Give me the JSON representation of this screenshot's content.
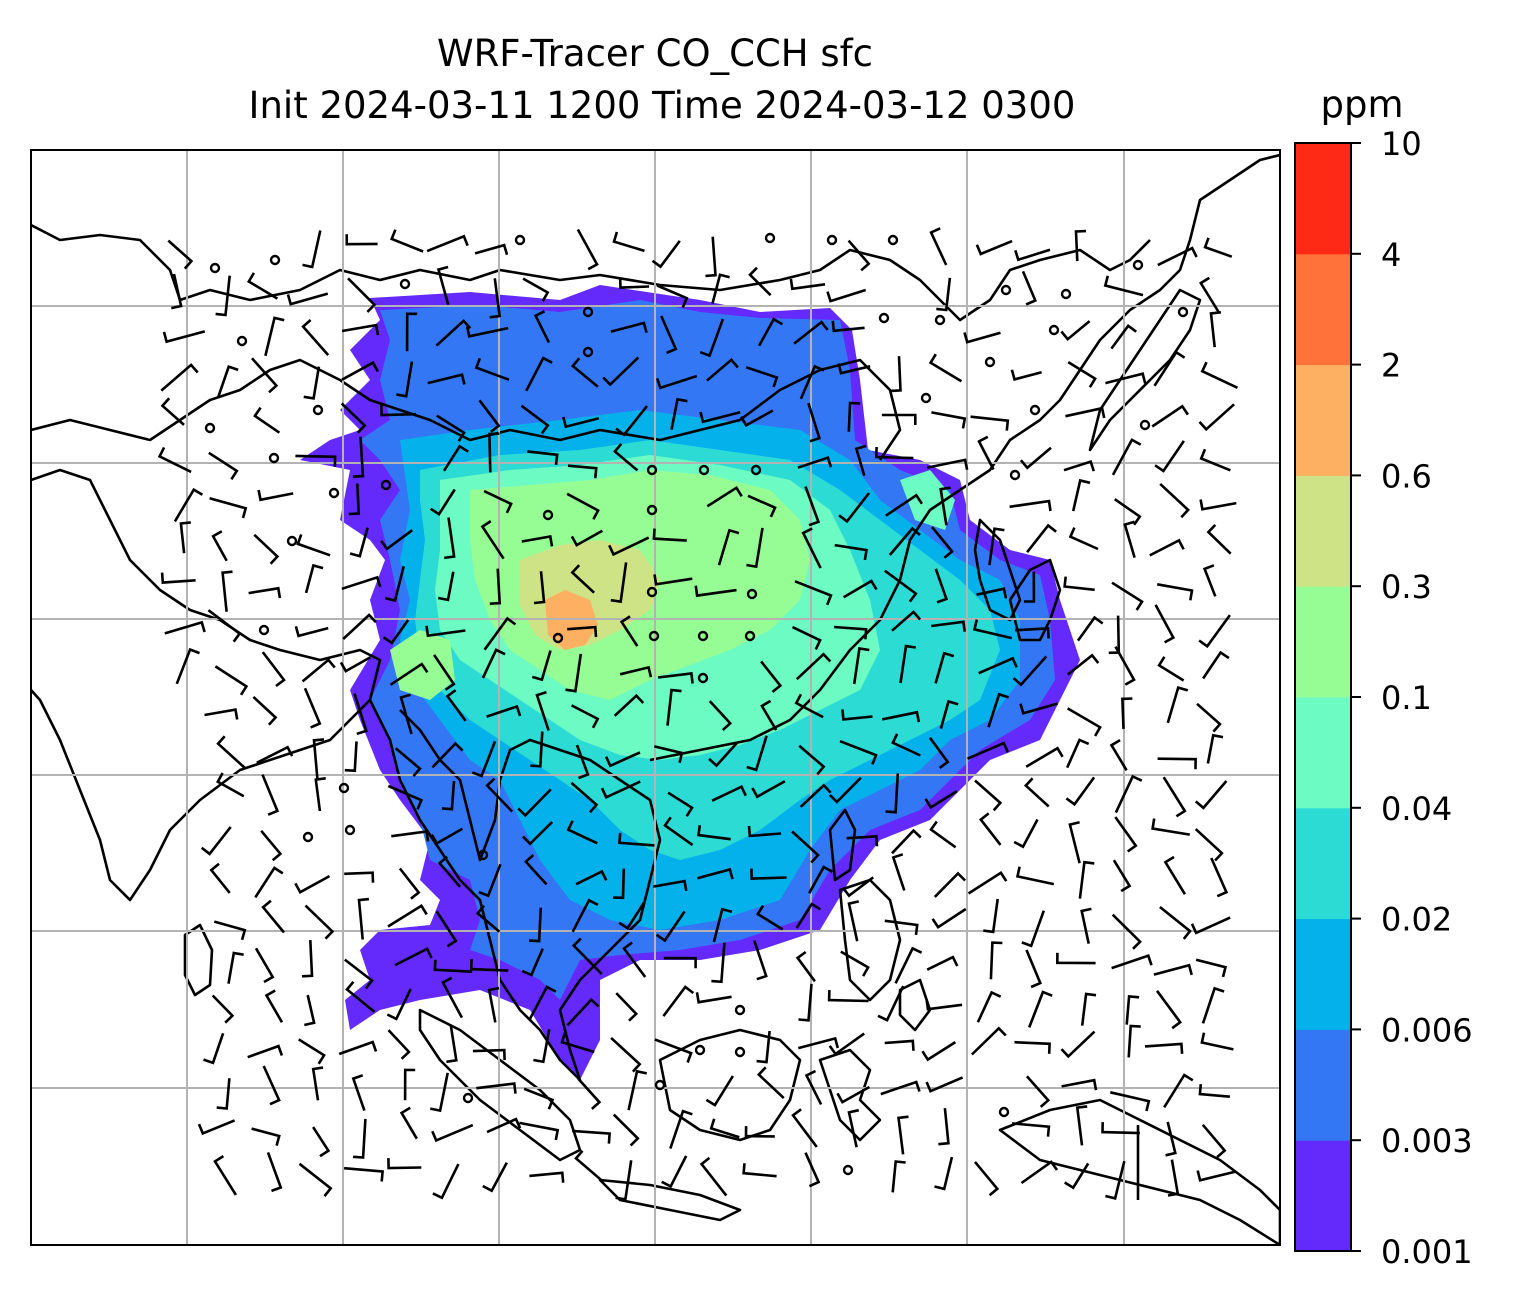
{
  "title": {
    "line1": "WRF-Tracer CO_CCH sfc",
    "line2": "Init 2024-03-11 1200 Time 2024-03-12 0300"
  },
  "colorbar": {
    "unit": "ppm",
    "levels": [
      "0.001",
      "0.003",
      "0.006",
      "0.02",
      "0.04",
      "0.1",
      "0.3",
      "0.6",
      "2",
      "4",
      "10"
    ],
    "colors": [
      "#6429fb",
      "#3477f5",
      "#05b1ea",
      "#2cdcd4",
      "#6cfbc2",
      "#96fd95",
      "#cde385",
      "#feb062",
      "#ff733a",
      "#ff2a15"
    ]
  },
  "map": {
    "gridlines": "on",
    "coastline_color": "#000000",
    "symbols": "wind-barbs"
  }
}
